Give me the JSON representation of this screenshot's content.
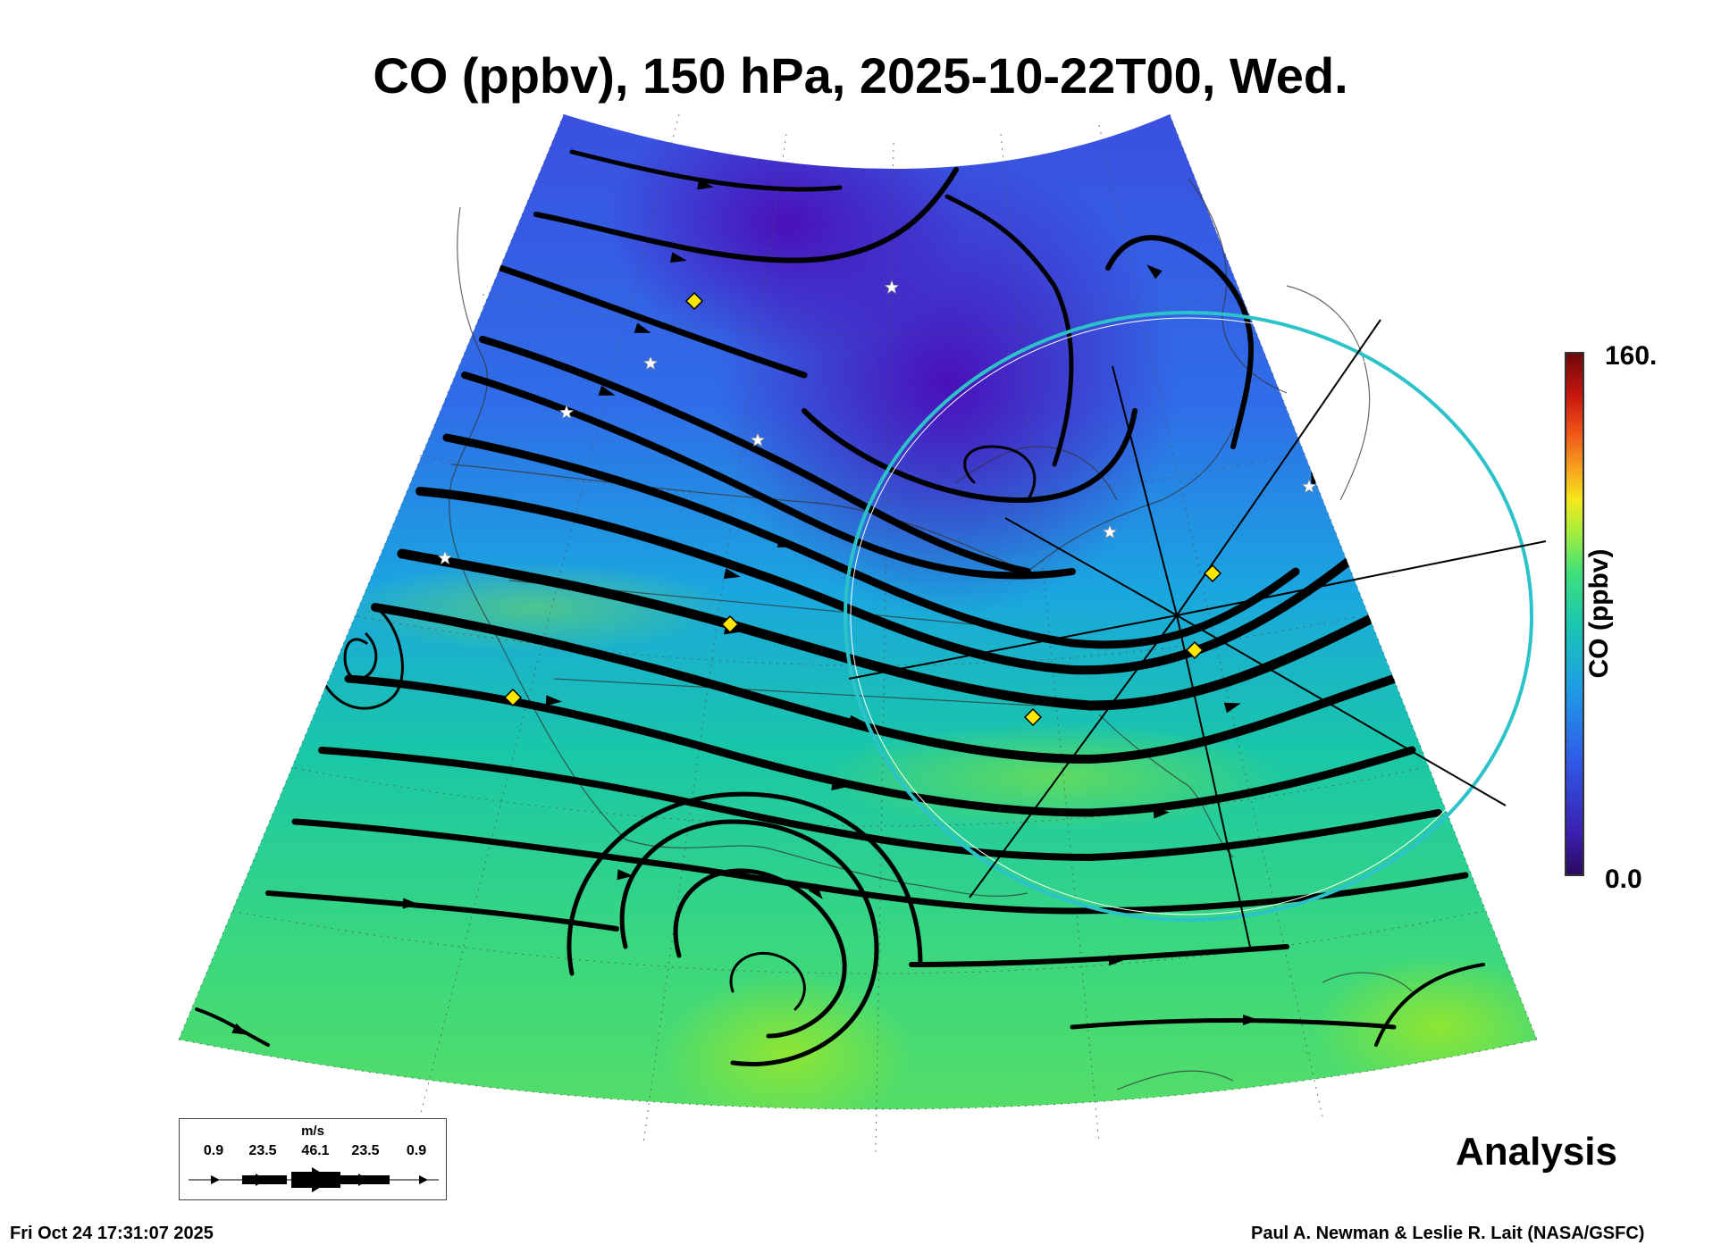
{
  "title": "CO (ppbv), 150 hPa, 2025-10-22T00, Wed.",
  "colorbar": {
    "max_label": "160.",
    "min_label": "0.0",
    "label": "CO (ppbv)",
    "range": [
      0,
      160
    ],
    "colors": [
      "#2b0a5e",
      "#3a1fb0",
      "#2f5be8",
      "#1e9ee6",
      "#19c7b0",
      "#3fe07a",
      "#a8ee3a",
      "#f6e81c",
      "#f7a21e",
      "#ee5317",
      "#c8160f",
      "#6d0909"
    ]
  },
  "wind_legend": {
    "unit": "m/s",
    "ticks": [
      "0.9",
      "23.5",
      "46.1",
      "23.5",
      "0.9"
    ]
  },
  "product_label": "Analysis",
  "timestamp": "Fri Oct 24 17:31:07 2025",
  "credit": "Paul A. Newman & Leslie R. Lait (NASA/GSFC)",
  "markers": {
    "station_star_color": "#ffffff",
    "diamond_color": "#ffe600",
    "ring_color": "#2bc3c9"
  },
  "icons": [
    "white-star-icon",
    "yellow-diamond-icon",
    "streamline-arrow-icon"
  ]
}
